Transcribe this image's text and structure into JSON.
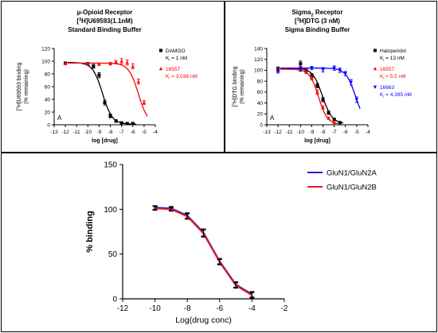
{
  "chart_data": [
    {
      "type": "line",
      "panel_label": "A",
      "title_lines": [
        {
          "prefix": "μ-Opioid Receptor"
        },
        {
          "prefix": "[",
          "sup": "3",
          "rest": "H]U69593(1.1nM)"
        },
        {
          "prefix": "Standard Binding Buffer"
        }
      ],
      "xlabel": "log [drug]",
      "ylabel_lines": [
        {
          "prefix": "[",
          "sup": "3",
          "rest": "H]U69593 binding"
        },
        {
          "prefix": "(% remaining)"
        }
      ],
      "xlim": [
        -13,
        -4
      ],
      "ylim": [
        0,
        120
      ],
      "xticks": [
        -13,
        -12,
        -11,
        -10,
        -9,
        -8,
        -7,
        -6,
        -5,
        -4
      ],
      "yticks": [
        0,
        20,
        40,
        60,
        80,
        100,
        120
      ],
      "legend_position": "right",
      "series": [
        {
          "name": "DAMGO",
          "ki_label": "= 1 nM",
          "color": "#000000",
          "marker": "square",
          "x": [
            -12,
            -10,
            -9.5,
            -9,
            -8.5,
            -8,
            -7.5,
            -7,
            -6.5,
            -6
          ],
          "y": [
            97,
            96,
            92,
            78,
            35,
            14,
            6,
            3,
            2,
            2
          ],
          "err": [
            1,
            2,
            3,
            4,
            4,
            3,
            2,
            1,
            1,
            1
          ],
          "fit_ic50": -8.7,
          "fit_hill": 1.0,
          "fit_top": 98,
          "fit_bottom": 1
        },
        {
          "name": "16557",
          "ki_label": "= 3,038 nM",
          "color": "#ff0000",
          "marker": "triangle-up",
          "x": [
            -12,
            -10,
            -9,
            -8,
            -7.5,
            -7,
            -6.5,
            -6,
            -5.5,
            -5
          ],
          "y": [
            96,
            96,
            95,
            96,
            99,
            100,
            98,
            92,
            68,
            35
          ],
          "err": [
            1,
            1,
            1,
            2,
            2,
            4,
            4,
            4,
            4,
            3
          ],
          "fit_ic50": -5.5,
          "fit_hill": 1.0,
          "fit_top": 97,
          "fit_bottom": 0
        }
      ]
    },
    {
      "type": "line",
      "panel_label": "A",
      "title_lines": [
        {
          "prefix": "Sigma",
          "sub": "2",
          "rest": " Receptor"
        },
        {
          "prefix": "[",
          "sup": "3",
          "rest": "H]DTG (3 nM)"
        },
        {
          "prefix": "Sigma Binding Buffer"
        }
      ],
      "xlabel": "log [drug]",
      "ylabel_lines": [
        {
          "prefix": "[",
          "sup": "3",
          "rest": "H]DTG binding"
        },
        {
          "prefix": "(% remaining)"
        }
      ],
      "xlim": [
        -13,
        -4
      ],
      "ylim": [
        0,
        140
      ],
      "xticks": [
        -13,
        -12,
        -11,
        -10,
        -9,
        -8,
        -7,
        -6,
        -5,
        -4
      ],
      "yticks": [
        0,
        20,
        40,
        60,
        80,
        100,
        120,
        140
      ],
      "legend_position": "right",
      "series": [
        {
          "name": "Haloperidol",
          "ki_label": "= 13 nM",
          "color": "#000000",
          "marker": "square",
          "x": [
            -12,
            -10,
            -9.5,
            -9,
            -8.5,
            -8,
            -7.5,
            -7,
            -6.5
          ],
          "y": [
            103,
            112,
            100,
            90,
            72,
            46,
            22,
            10,
            4
          ],
          "err": [
            3,
            5,
            4,
            4,
            4,
            4,
            3,
            2,
            2
          ],
          "fit_ic50": -8.05,
          "fit_hill": 1.0,
          "fit_top": 104,
          "fit_bottom": 2
        },
        {
          "name": "16557",
          "ki_label": "= 5.5 nM",
          "color": "#ff0000",
          "marker": "triangle-up",
          "x": [
            -12,
            -10,
            -9.5,
            -9,
            -8.5,
            -8,
            -7.5,
            -7
          ],
          "y": [
            100,
            103,
            98,
            86,
            60,
            32,
            12,
            4
          ],
          "err": [
            3,
            4,
            4,
            4,
            4,
            3,
            2,
            2
          ],
          "fit_ic50": -8.4,
          "fit_hill": 1.1,
          "fit_top": 102,
          "fit_bottom": 1
        },
        {
          "name": "16663",
          "ki_label": "= 4,395 nM",
          "color": "#0000ff",
          "marker": "triangle-down",
          "x": [
            -12,
            -10,
            -9,
            -8,
            -7,
            -6.5,
            -6,
            -5.5,
            -5
          ],
          "y": [
            98,
            102,
            104,
            101,
            104,
            100,
            94,
            78,
            46
          ],
          "err": [
            3,
            4,
            3,
            4,
            4,
            4,
            4,
            5,
            5
          ],
          "fit_ic50": -5.1,
          "fit_hill": 1.0,
          "fit_top": 104,
          "fit_bottom": 0
        }
      ]
    },
    {
      "type": "line",
      "xlabel": "Log(drug conc)",
      "ylabel": "% binding",
      "xlim": [
        -12,
        -2
      ],
      "ylim": [
        0,
        150
      ],
      "xticks": [
        -12,
        -10,
        -8,
        -6,
        -4,
        -2
      ],
      "yticks": [
        0,
        50,
        100,
        150
      ],
      "legend_position": "top-right",
      "series": [
        {
          "name": "GluN1/GluN2A",
          "color": "#1f1fd6",
          "x": [
            -10,
            -9,
            -8,
            -7,
            -6,
            -5,
            -4
          ],
          "y": [
            102,
            101,
            93,
            74,
            42,
            16,
            5
          ],
          "err": [
            2,
            2,
            3,
            4,
            3,
            3,
            3
          ]
        },
        {
          "name": "GluN1/GluN2B",
          "color": "#e8191e",
          "x": [
            -10,
            -9,
            -8,
            -7,
            -6,
            -5,
            -4
          ],
          "y": [
            101,
            100,
            92,
            73,
            41,
            15,
            4
          ],
          "err": [
            2,
            2,
            3,
            4,
            3,
            3,
            3
          ]
        }
      ]
    }
  ]
}
